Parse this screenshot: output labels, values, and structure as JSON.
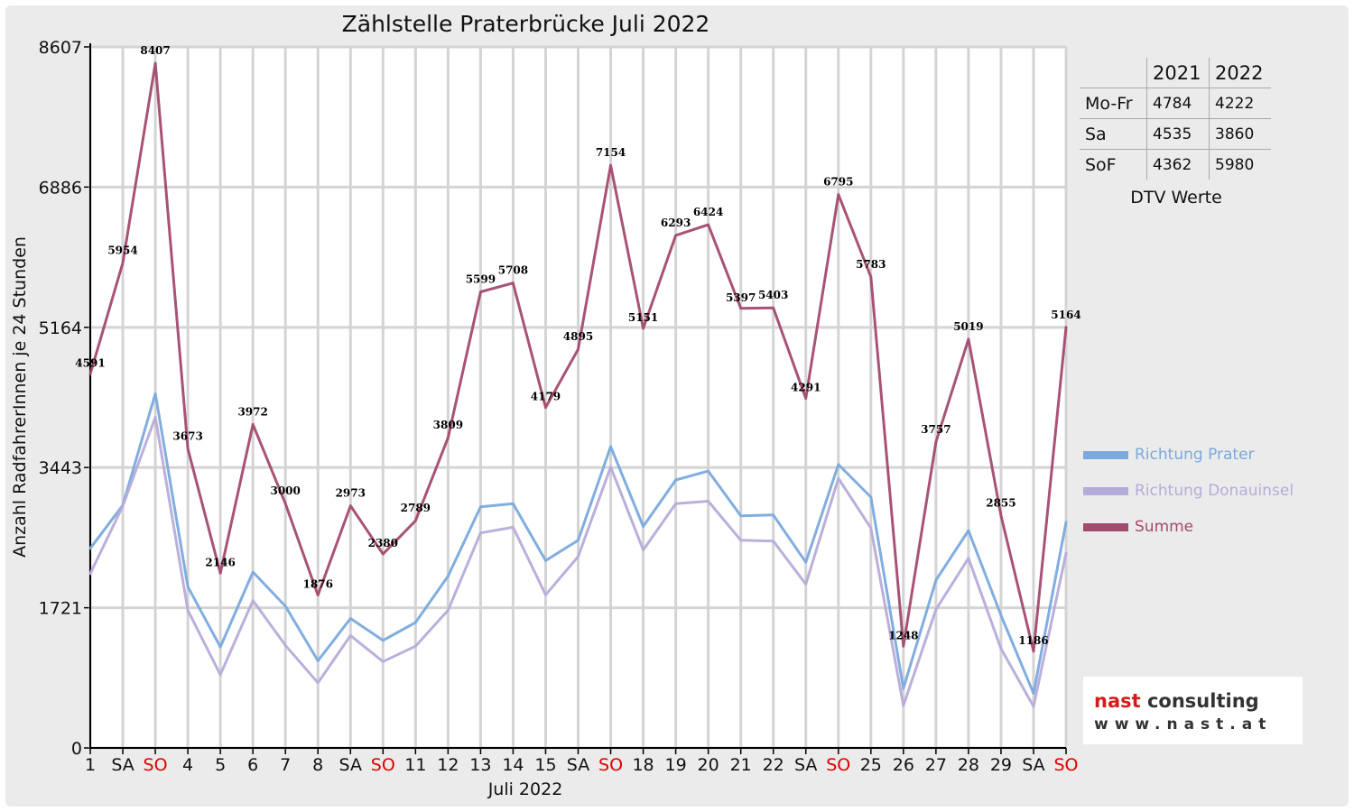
{
  "chart_data": {
    "type": "line",
    "title": "Zählstelle Praterbrücke Juli 2022",
    "xlabel": "Juli 2022",
    "ylabel": "Anzahl RadfahrerInnen je 24 Stunden",
    "ylim": [
      0,
      8607
    ],
    "yticks": [
      "0",
      "1721",
      "3443",
      "5164",
      "6886",
      "8607"
    ],
    "categories": [
      "1",
      "SA",
      "SO",
      "4",
      "5",
      "6",
      "7",
      "8",
      "SA",
      "SO",
      "11",
      "12",
      "13",
      "14",
      "15",
      "SA",
      "SO",
      "18",
      "19",
      "20",
      "21",
      "22",
      "SA",
      "SO",
      "25",
      "26",
      "27",
      "28",
      "29",
      "SA",
      "SO"
    ],
    "weekend_color": "#e00000",
    "grid": true,
    "legend_position": "right",
    "series": [
      {
        "name": "Richtung Prater",
        "color": "#7aaadd",
        "values": [
          2450,
          2980,
          4350,
          1980,
          1240,
          2160,
          1740,
          1070,
          1590,
          1320,
          1540,
          2110,
          2960,
          3000,
          2300,
          2550,
          3700,
          2720,
          3290,
          3400,
          2850,
          2860,
          2280,
          3480,
          3080,
          730,
          2060,
          2670,
          1630,
          670,
          2770
        ]
      },
      {
        "name": "Richtung Donauinsel",
        "color": "#b7abd9",
        "values": [
          2140,
          2970,
          4060,
          1690,
          900,
          1810,
          1260,
          800,
          1380,
          1060,
          1250,
          1690,
          2640,
          2710,
          1880,
          2350,
          3450,
          2430,
          3000,
          3030,
          2550,
          2540,
          2010,
          3310,
          2700,
          520,
          1700,
          2330,
          1220,
          510,
          2390
        ]
      },
      {
        "name": "Summe",
        "color": "#a34a6f",
        "values": [
          4591,
          5954,
          8407,
          3673,
          2146,
          3972,
          3000,
          1876,
          2973,
          2380,
          2789,
          3809,
          5599,
          5708,
          4179,
          4895,
          7154,
          5151,
          6293,
          6424,
          5397,
          5403,
          4291,
          6795,
          5783,
          1248,
          3757,
          5019,
          2855,
          1186,
          5164
        ]
      }
    ],
    "data_labels": [
      "4591",
      "5954",
      "8407",
      "3673",
      "2146",
      "3972",
      "3000",
      "1876",
      "2973",
      "2380",
      "2789",
      "3809",
      "5599",
      "5708",
      "4179",
      "4895",
      "7154",
      "5151",
      "6293",
      "6424",
      "5397",
      "5403",
      "4291",
      "6795",
      "5783",
      "1248",
      "3757",
      "5019",
      "2855",
      "1186",
      "5164"
    ]
  },
  "dtv_table": {
    "headers": [
      "",
      "2021",
      "2022"
    ],
    "rows": [
      [
        "Mo-Fr",
        "4784",
        "4222"
      ],
      [
        "Sa",
        "4535",
        "3860"
      ],
      [
        "SoF",
        "4362",
        "5980"
      ]
    ],
    "caption": "DTV Werte"
  },
  "logo": {
    "name_part1": "nast",
    "name_part2": "consulting",
    "url": "www.nast.at"
  }
}
